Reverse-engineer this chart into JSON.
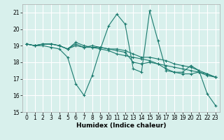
{
  "title": "",
  "xlabel": "Humidex (Indice chaleur)",
  "bg_color": "#d8f0ec",
  "grid_color": "#ffffff",
  "line_color": "#1a7a6e",
  "xlim": [
    -0.5,
    23.5
  ],
  "ylim": [
    15,
    21.5
  ],
  "yticks": [
    15,
    16,
    17,
    18,
    19,
    20,
    21
  ],
  "xticks": [
    0,
    1,
    2,
    3,
    4,
    5,
    6,
    7,
    8,
    9,
    10,
    11,
    12,
    13,
    14,
    15,
    16,
    17,
    18,
    19,
    20,
    21,
    22,
    23
  ],
  "series": [
    [
      19.1,
      19.0,
      19.0,
      18.9,
      18.8,
      18.3,
      16.7,
      16.0,
      17.2,
      18.8,
      20.2,
      20.9,
      20.3,
      17.6,
      17.4,
      21.1,
      19.3,
      17.5,
      17.4,
      17.4,
      17.8,
      17.5,
      16.1,
      15.4
    ],
    [
      19.1,
      19.0,
      19.1,
      19.1,
      19.0,
      18.8,
      19.2,
      19.0,
      18.9,
      18.8,
      18.7,
      18.5,
      18.4,
      18.3,
      18.2,
      18.1,
      17.9,
      17.8,
      17.7,
      17.6,
      17.5,
      17.4,
      17.2,
      17.1
    ],
    [
      19.1,
      19.0,
      19.1,
      19.1,
      19.0,
      18.8,
      19.1,
      18.9,
      19.0,
      18.9,
      18.8,
      18.7,
      18.6,
      18.0,
      17.9,
      18.0,
      17.9,
      17.6,
      17.4,
      17.3,
      17.3,
      17.4,
      17.3,
      17.1
    ],
    [
      19.1,
      19.0,
      19.1,
      19.1,
      19.0,
      18.8,
      19.0,
      18.9,
      18.9,
      18.9,
      18.8,
      18.8,
      18.7,
      18.5,
      18.3,
      18.3,
      18.2,
      18.1,
      17.9,
      17.8,
      17.7,
      17.5,
      17.3,
      17.1
    ]
  ]
}
